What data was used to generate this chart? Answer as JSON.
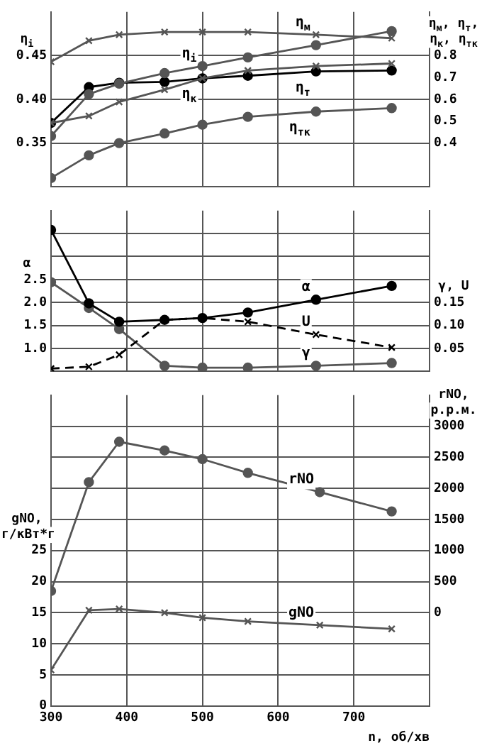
{
  "chart_data": [
    {
      "type": "line",
      "grid": true,
      "legend": false,
      "tick_labels": "y",
      "x": [
        300,
        350,
        390,
        450,
        500,
        560,
        650,
        750
      ],
      "xlim": [
        300,
        800
      ],
      "xticks": [
        300,
        400,
        500,
        600,
        700
      ],
      "ylabel": "η$_{i}$",
      "ylim": [
        0.3,
        0.5
      ],
      "yticks": [
        0.35,
        {
          "value": 0.4,
          "label": "0.40"
        },
        0.45
      ],
      "y2label": "η$_{м}$, η$_{т}$, η$_{к}$, η$_{тк}$",
      "y2lim": [
        0.2,
        1.0
      ],
      "y2ticks": [
        0.4,
        0.5,
        0.6,
        0.7,
        0.8
      ],
      "series": [
        {
          "name": "η$_{i}$",
          "color": "#555555",
          "marker": "circle",
          "values": [
            0.358,
            0.406,
            0.418,
            0.43,
            0.438,
            0.448,
            0.462,
            0.478
          ]
        },
        {
          "name": "η$_{м}$",
          "color": "#555555",
          "marker": "cross",
          "axis": "y2",
          "values": [
            0.772,
            0.868,
            0.896,
            0.908,
            0.908,
            0.908,
            0.896,
            0.88
          ]
        },
        {
          "name": "η$_{к}$",
          "color": "#555555",
          "marker": "cross",
          "axis": "y2",
          "values": [
            0.492,
            0.524,
            0.588,
            0.644,
            0.696,
            0.732,
            0.752,
            0.764
          ]
        },
        {
          "name": "η$_{т}$",
          "color": "#000000",
          "marker": "circle",
          "axis": "y2",
          "values": [
            0.492,
            0.656,
            0.676,
            0.68,
            0.696,
            0.708,
            0.728,
            0.732
          ]
        },
        {
          "name": "η$_{тк}$",
          "color": "#555555",
          "marker": "circle",
          "axis": "y2",
          "values": [
            0.24,
            0.344,
            0.4,
            0.444,
            0.484,
            0.52,
            0.544,
            0.56
          ]
        }
      ]
    },
    {
      "type": "line",
      "grid": true,
      "legend": false,
      "tick_labels": "y",
      "x": [
        300,
        350,
        390,
        450,
        500,
        560,
        650,
        750
      ],
      "xlim": [
        300,
        800
      ],
      "xticks": [
        300,
        400,
        500,
        600,
        700
      ],
      "ylabel": "α",
      "ylim": [
        0.5,
        4.0
      ],
      "yticks": [
        {
          "value": 1,
          "label": "1.0"
        },
        1.5,
        {
          "value": 2,
          "label": "2.0"
        },
        2.5,
        {
          "value": 3,
          "label": null
        },
        {
          "value": 3.5,
          "label": null
        }
      ],
      "y2label": "γ, U",
      "y2lim": [
        0,
        0.35
      ],
      "y2ticks": [
        0.05,
        {
          "value": 0.1,
          "label": "0.10"
        },
        0.15
      ],
      "series": [
        {
          "name": "α",
          "color": "#000000",
          "marker": "circle",
          "values": [
            3.58,
            1.98,
            1.58,
            1.62,
            1.66,
            1.78,
            2.06,
            2.36
          ]
        },
        {
          "name": "U",
          "color": "#000000",
          "marker": "cross",
          "axis": "y2",
          "line_style": "dashed",
          "values": [
            0.006,
            0.01,
            0.036,
            0.112,
            0.116,
            0.108,
            0.08,
            0.052
          ]
        },
        {
          "name": "γ",
          "color": "#555555",
          "marker": "circle",
          "axis": "y2",
          "values": [
            0.194,
            0.138,
            0.092,
            0.012,
            0.008,
            0.008,
            0.012,
            0.018
          ]
        }
      ]
    },
    {
      "type": "line",
      "grid": true,
      "legend": false,
      "x": [
        300,
        350,
        390,
        450,
        500,
        560,
        655,
        750
      ],
      "xlabel": "n, об/хв",
      "xlim": [
        300,
        800
      ],
      "xticks": [
        300,
        400,
        500,
        600,
        700
      ],
      "ylabel": "gNO, г/кВт*г",
      "ylim": [
        0,
        50
      ],
      "yticks": [
        0,
        5,
        10,
        15,
        20,
        25,
        {
          "value": 30,
          "label": null
        },
        {
          "value": 35,
          "label": null
        },
        {
          "value": 40,
          "label": null
        },
        {
          "value": 45,
          "label": null
        }
      ],
      "y2label": "rNO, р.р.м.",
      "y2lim": [
        -1500,
        3500
      ],
      "y2ticks": [
        0,
        500,
        1000,
        1500,
        2000,
        2500,
        3000
      ],
      "series": [
        {
          "name": "rNO",
          "color": "#555555",
          "marker": "circle",
          "axis": "y2",
          "values": [
            350,
            2100,
            2750,
            2610,
            2470,
            2250,
            1940,
            1630
          ]
        },
        {
          "name": "gNO",
          "color": "#555555",
          "marker": "cross",
          "values": [
            5.8,
            15.4,
            15.6,
            15.0,
            14.2,
            13.6,
            13.0,
            12.4
          ]
        }
      ]
    }
  ]
}
